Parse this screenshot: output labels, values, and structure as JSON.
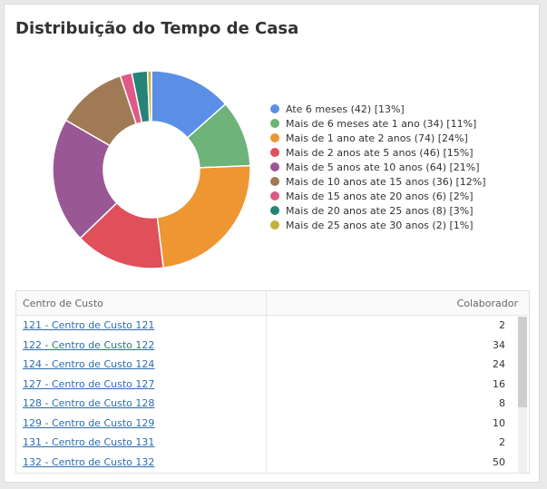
{
  "title": "Distribuição do Tempo de Casa",
  "chart_data": {
    "type": "pie",
    "title": "Distribuição do Tempo de Casa",
    "legend_position": "right",
    "slices": [
      {
        "label": "Ate 6 meses (42) [13%]",
        "value": 42,
        "color": "#5b8fe6"
      },
      {
        "label": "Mais de 6 meses ate 1 ano (34) [11%]",
        "value": 34,
        "color": "#6db37a"
      },
      {
        "label": "Mais de 1 ano ate 2 anos (74) [24%]",
        "value": 74,
        "color": "#ee9632"
      },
      {
        "label": "Mais de 2 anos ate 5 anos (46) [15%]",
        "value": 46,
        "color": "#e0505a"
      },
      {
        "label": "Mais de 5 anos ate 10 anos (64) [21%]",
        "value": 64,
        "color": "#9a5796"
      },
      {
        "label": "Mais de 10 anos ate 15 anos (36) [12%]",
        "value": 36,
        "color": "#a07a55"
      },
      {
        "label": "Mais de 15 anos ate 20 anos (6) [2%]",
        "value": 6,
        "color": "#df5a86"
      },
      {
        "label": "Mais de 20 anos ate 25 anos (8) [3%]",
        "value": 8,
        "color": "#268377"
      },
      {
        "label": "Mais de 25 anos ate 30 anos (2) [1%]",
        "value": 2,
        "color": "#c4b23c"
      }
    ]
  },
  "table": {
    "headers": [
      "Centro de Custo",
      "Colaborador"
    ],
    "rows": [
      {
        "name": "121 - Centro de Custo 121",
        "count": "2"
      },
      {
        "name": "122 - Centro de Custo 122",
        "count": "34"
      },
      {
        "name": "124 - Centro de Custo 124",
        "count": "24"
      },
      {
        "name": "127 - Centro de Custo 127",
        "count": "16"
      },
      {
        "name": "128 - Centro de Custo 128",
        "count": "8"
      },
      {
        "name": "129 - Centro de Custo 129",
        "count": "10"
      },
      {
        "name": "131 - Centro de Custo 131",
        "count": "2"
      },
      {
        "name": "132 - Centro de Custo 132",
        "count": "50"
      }
    ]
  }
}
